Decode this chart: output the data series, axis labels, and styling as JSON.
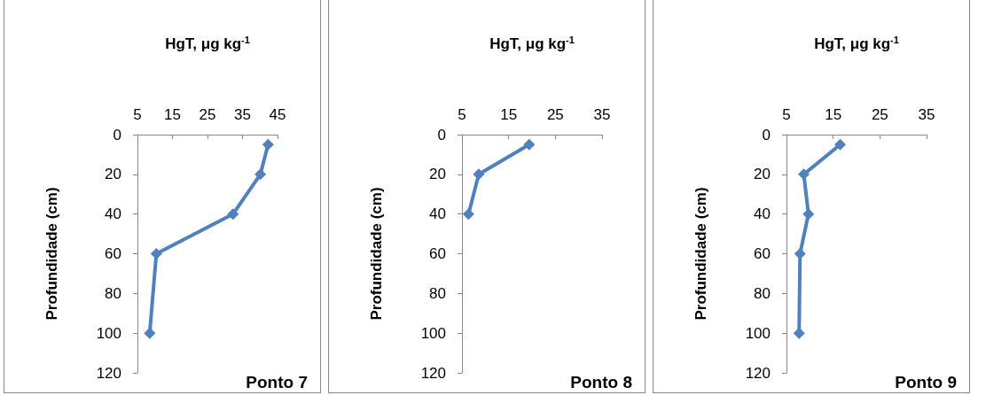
{
  "chart_data": [
    {
      "type": "line",
      "xlabel": "HgT, μg kg$^{-1}$",
      "ylabel": "Profundidade (cm)",
      "annotations": [
        "Ponto 7"
      ],
      "marker": "diamond",
      "line_style": "solid",
      "grid": false,
      "series": [
        {
          "color": "#4f81bd",
          "x": [
            42.3,
            40.1,
            32.3,
            10.4,
            8.5
          ],
          "values": [
            5,
            20,
            40,
            60,
            100
          ]
        }
      ],
      "xlim": [
        5,
        45
      ],
      "xticks": [
        5,
        15,
        25,
        35,
        45
      ],
      "ylim": [
        120,
        0
      ],
      "yticks": [
        0,
        20,
        40,
        60,
        80,
        100,
        120
      ]
    },
    {
      "type": "line",
      "xlabel": "HgT, μg kg$^{-1}$",
      "ylabel": "Profundidade (cm)",
      "annotations": [
        "Ponto 8"
      ],
      "marker": "diamond",
      "line_style": "solid",
      "grid": false,
      "series": [
        {
          "color": "#4f81bd",
          "x": [
            19.4,
            8.6,
            6.4
          ],
          "values": [
            5,
            20,
            40
          ]
        }
      ],
      "xlim": [
        5,
        35
      ],
      "xticks": [
        5,
        15,
        25,
        35
      ],
      "ylim": [
        120,
        0
      ],
      "yticks": [
        0,
        20,
        40,
        60,
        80,
        100,
        120
      ]
    },
    {
      "type": "line",
      "xlabel": "HgT, μg kg$^{-1}$",
      "ylabel": "Profundidade (cm)",
      "annotations": [
        "Ponto 9"
      ],
      "marker": "diamond",
      "line_style": "solid",
      "grid": false,
      "series": [
        {
          "color": "#4f81bd",
          "x": [
            16.5,
            8.7,
            9.7,
            7.9,
            7.7
          ],
          "values": [
            5,
            20,
            40,
            60,
            100
          ]
        }
      ],
      "xlim": [
        5,
        35
      ],
      "xticks": [
        5,
        15,
        25,
        35
      ],
      "ylim": [
        120,
        0
      ],
      "yticks": [
        0,
        20,
        40,
        60,
        80,
        100,
        120
      ]
    }
  ]
}
